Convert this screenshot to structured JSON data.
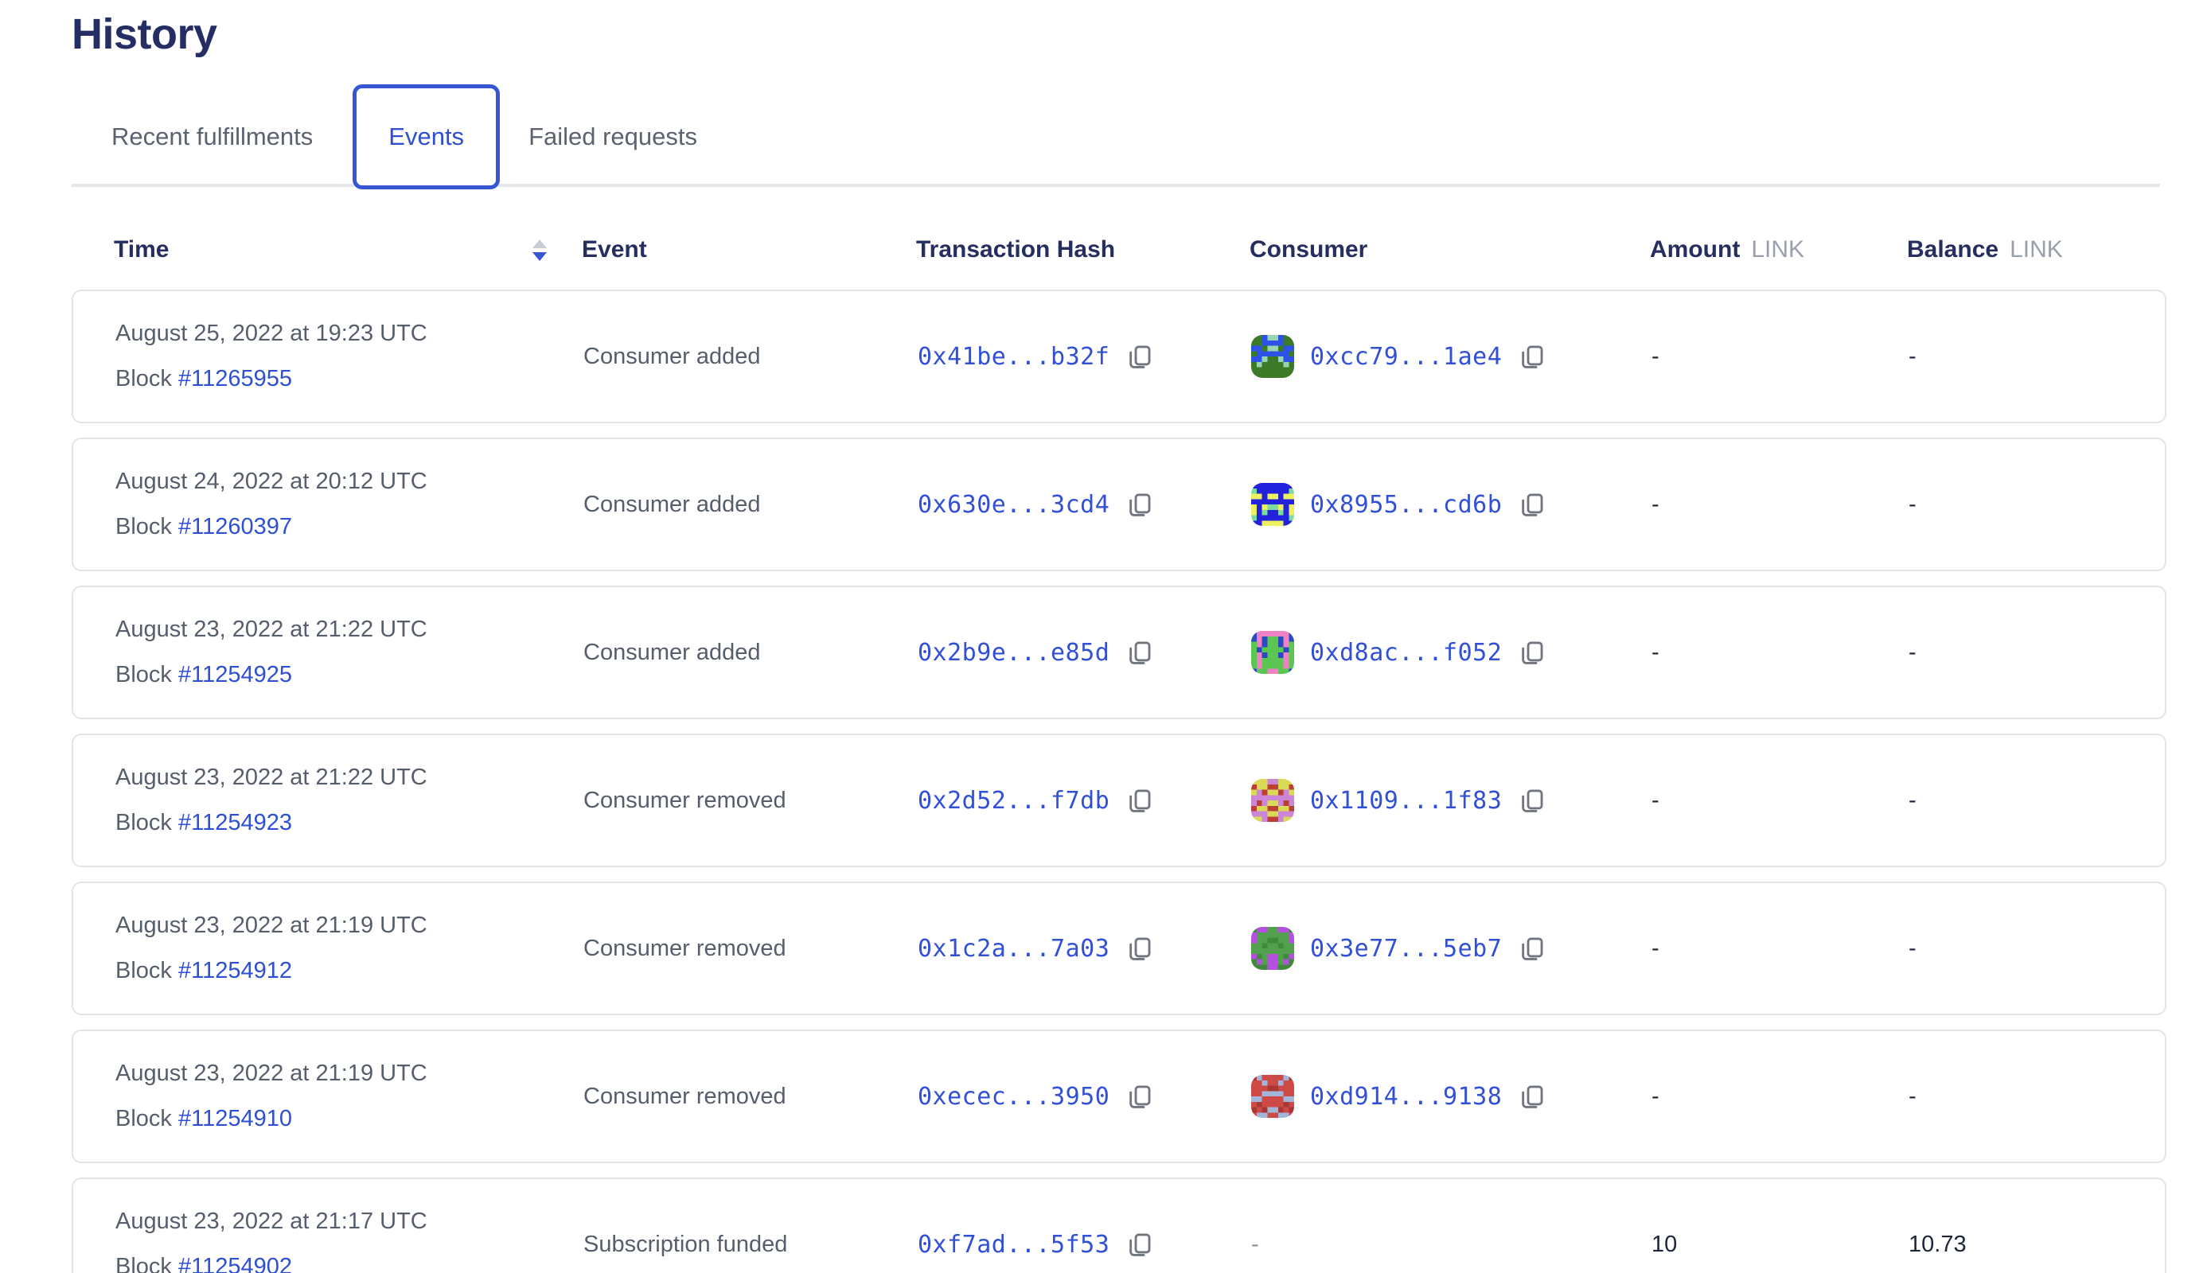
{
  "page": {
    "title": "History"
  },
  "tabs": [
    {
      "label": "Recent fulfillments",
      "active": false
    },
    {
      "label": "Events",
      "active": true
    },
    {
      "label": "Failed requests",
      "active": false
    }
  ],
  "table": {
    "headers": {
      "time": "Time",
      "event": "Event",
      "hash": "Transaction Hash",
      "consumer": "Consumer",
      "amount": "Amount",
      "amount_unit": "LINK",
      "balance": "Balance",
      "balance_unit": "LINK"
    },
    "sort": {
      "column": "Time",
      "direction": "descending"
    },
    "rows": [
      {
        "time": "August 25, 2022 at 19:23 UTC",
        "block_label": "Block",
        "block_number": "#11265955",
        "event": "Consumer added",
        "tx_hash": "0x41be...b32f",
        "consumer": {
          "address": "0xcc79...1ae4",
          "identicon": {
            "seed": 12,
            "colors": [
              "#3c7a28",
              "#2c52e8",
              "#9ad4b5"
            ]
          }
        },
        "amount": "-",
        "balance": "-"
      },
      {
        "time": "August 24, 2022 at 20:12 UTC",
        "block_label": "Block",
        "block_number": "#11260397",
        "event": "Consumer added",
        "tx_hash": "0x630e...3cd4",
        "consumer": {
          "address": "0x8955...cd6b",
          "identicon": {
            "seed": 27,
            "colors": [
              "#2222dd",
              "#eef060",
              "#7bdc9e"
            ]
          }
        },
        "amount": "-",
        "balance": "-"
      },
      {
        "time": "August 23, 2022 at 21:22 UTC",
        "block_label": "Block",
        "block_number": "#11254925",
        "event": "Consumer added",
        "tx_hash": "0x2b9e...e85d",
        "consumer": {
          "address": "0xd8ac...f052",
          "identicon": {
            "seed": 41,
            "colors": [
              "#5cc653",
              "#ef82c4",
              "#2b49c0"
            ]
          }
        },
        "amount": "-",
        "balance": "-"
      },
      {
        "time": "August 23, 2022 at 21:22 UTC",
        "block_label": "Block",
        "block_number": "#11254923",
        "event": "Consumer removed",
        "tx_hash": "0x2d52...f7db",
        "consumer": {
          "address": "0x1109...1f83",
          "identicon": {
            "seed": 58,
            "colors": [
              "#cd85d8",
              "#d9da57",
              "#bc3f35"
            ]
          }
        },
        "amount": "-",
        "balance": "-"
      },
      {
        "time": "August 23, 2022 at 21:19 UTC",
        "block_label": "Block",
        "block_number": "#11254912",
        "event": "Consumer removed",
        "tx_hash": "0x1c2a...7a03",
        "consumer": {
          "address": "0x3e77...5eb7",
          "identicon": {
            "seed": 73,
            "colors": [
              "#53a04f",
              "#3f8a3c",
              "#b44fe0"
            ]
          }
        },
        "amount": "-",
        "balance": "-"
      },
      {
        "time": "August 23, 2022 at 21:19 UTC",
        "block_label": "Block",
        "block_number": "#11254910",
        "event": "Consumer removed",
        "tx_hash": "0xecec...3950",
        "consumer": {
          "address": "0xd914...9138",
          "identicon": {
            "seed": 88,
            "colors": [
              "#cd4a46",
              "#a3b6d9",
              "#a83833"
            ]
          }
        },
        "amount": "-",
        "balance": "-"
      },
      {
        "time": "August 23, 2022 at 21:17 UTC",
        "block_label": "Block",
        "block_number": "#11254902",
        "event": "Subscription funded",
        "tx_hash": "0xf7ad...5f53",
        "consumer": {
          "address": null,
          "placeholder": "-"
        },
        "amount": "10",
        "balance": "10.73"
      }
    ]
  },
  "colors": {
    "heading": "#252e64",
    "accent_blue": "#3656d4",
    "link_blue": "#3150d6",
    "body_gray": "#565d6b",
    "unit_gray": "#9aa0ab",
    "card_border": "#e4e4e8"
  }
}
